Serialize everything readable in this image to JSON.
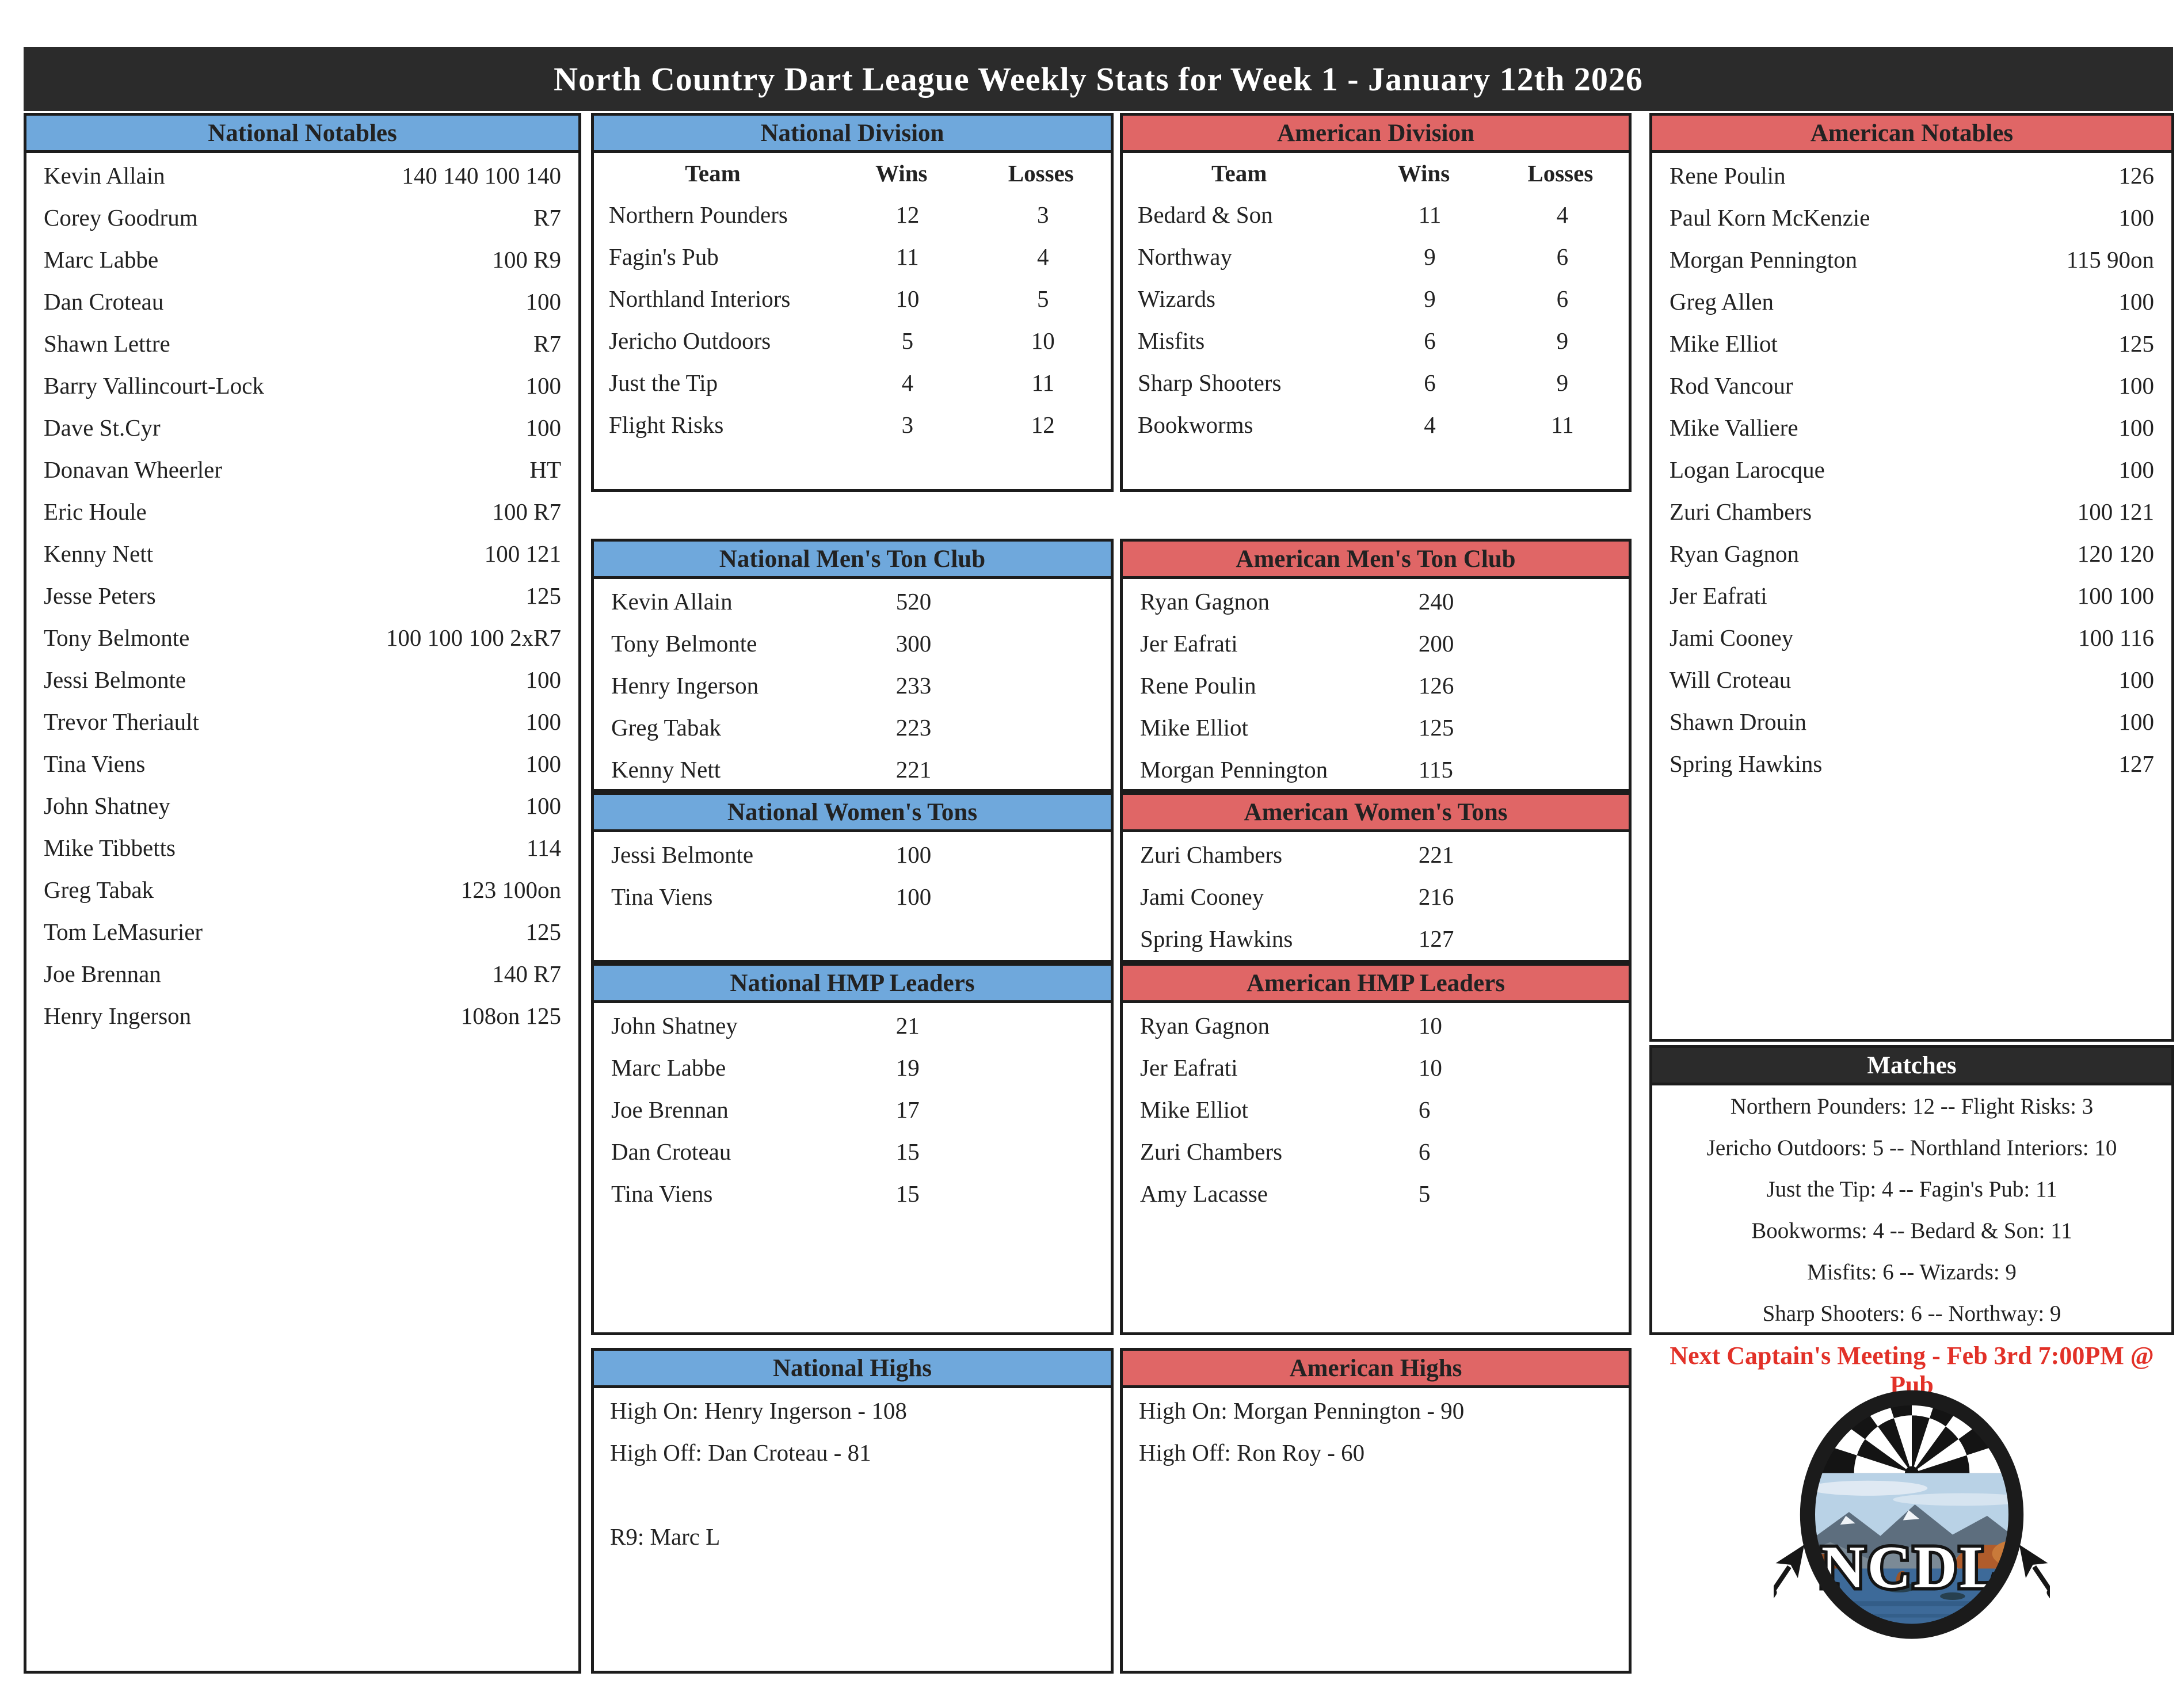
{
  "title": "North Country Dart League Weekly Stats for Week 1 - January 12th 2026",
  "colors": {
    "blue_header": "#6fa8dc",
    "red_header": "#e06666",
    "dark_bar": "#2b2b2b",
    "meeting_red": "#e23128"
  },
  "national_notables": {
    "title": "National Notables",
    "rows": [
      {
        "name": "Kevin Allain",
        "value": "140 140 100 140"
      },
      {
        "name": "Corey Goodrum",
        "value": "R7"
      },
      {
        "name": "Marc Labbe",
        "value": "100 R9"
      },
      {
        "name": "Dan Croteau",
        "value": "100"
      },
      {
        "name": "Shawn Lettre",
        "value": "R7"
      },
      {
        "name": "Barry Vallincourt-Lock",
        "value": "100"
      },
      {
        "name": "Dave St.Cyr",
        "value": "100"
      },
      {
        "name": "Donavan Wheerler",
        "value": "HT"
      },
      {
        "name": "Eric Houle",
        "value": "100 R7"
      },
      {
        "name": "Kenny Nett",
        "value": "100 121"
      },
      {
        "name": "Jesse Peters",
        "value": "125"
      },
      {
        "name": "Tony Belmonte",
        "value": "100 100 100 2xR7"
      },
      {
        "name": "Jessi Belmonte",
        "value": "100"
      },
      {
        "name": "Trevor Theriault",
        "value": "100"
      },
      {
        "name": "Tina Viens",
        "value": "100"
      },
      {
        "name": "John Shatney",
        "value": "100"
      },
      {
        "name": "Mike Tibbetts",
        "value": "114"
      },
      {
        "name": "Greg Tabak",
        "value": "123 100on"
      },
      {
        "name": "Tom LeMasurier",
        "value": "125"
      },
      {
        "name": "Joe Brennan",
        "value": "140 R7"
      },
      {
        "name": "Henry Ingerson",
        "value": "108on 125"
      }
    ]
  },
  "national_division": {
    "title": "National Division",
    "columns": {
      "team": "Team",
      "wins": "Wins",
      "losses": "Losses"
    },
    "rows": [
      {
        "team": "Northern Pounders",
        "wins": "12",
        "losses": "3"
      },
      {
        "team": "Fagin's Pub",
        "wins": "11",
        "losses": "4"
      },
      {
        "team": "Northland Interiors",
        "wins": "10",
        "losses": "5"
      },
      {
        "team": "Jericho Outdoors",
        "wins": "5",
        "losses": "10"
      },
      {
        "team": "Just the Tip",
        "wins": "4",
        "losses": "11"
      },
      {
        "team": "Flight Risks",
        "wins": "3",
        "losses": "12"
      }
    ]
  },
  "american_division": {
    "title": "American Division",
    "columns": {
      "team": "Team",
      "wins": "Wins",
      "losses": "Losses"
    },
    "rows": [
      {
        "team": "Bedard & Son",
        "wins": "11",
        "losses": "4"
      },
      {
        "team": "Northway",
        "wins": "9",
        "losses": "6"
      },
      {
        "team": "Wizards",
        "wins": "9",
        "losses": "6"
      },
      {
        "team": "Misfits",
        "wins": "6",
        "losses": "9"
      },
      {
        "team": "Sharp Shooters",
        "wins": "6",
        "losses": "9"
      },
      {
        "team": "Bookworms",
        "wins": "4",
        "losses": "11"
      }
    ]
  },
  "national_mens_ton_club": {
    "title": "National Men's Ton Club",
    "rows": [
      {
        "name": "Kevin Allain",
        "value": "520"
      },
      {
        "name": "Tony Belmonte",
        "value": "300"
      },
      {
        "name": "Henry Ingerson",
        "value": "233"
      },
      {
        "name": "Greg Tabak",
        "value": "223"
      },
      {
        "name": "Kenny Nett",
        "value": "221"
      }
    ]
  },
  "american_mens_ton_club": {
    "title": "American Men's Ton Club",
    "rows": [
      {
        "name": "Ryan Gagnon",
        "value": "240"
      },
      {
        "name": "Jer Eafrati",
        "value": "200"
      },
      {
        "name": "Rene Poulin",
        "value": "126"
      },
      {
        "name": "Mike Elliot",
        "value": "125"
      },
      {
        "name": "Morgan Pennington",
        "value": "115"
      }
    ]
  },
  "national_womens_tons": {
    "title": "National Women's Tons",
    "rows": [
      {
        "name": "Jessi Belmonte",
        "value": "100"
      },
      {
        "name": "Tina Viens",
        "value": "100"
      }
    ]
  },
  "american_womens_tons": {
    "title": "American Women's Tons",
    "rows": [
      {
        "name": "Zuri Chambers",
        "value": "221"
      },
      {
        "name": "Jami Cooney",
        "value": "216"
      },
      {
        "name": "Spring Hawkins",
        "value": "127"
      }
    ]
  },
  "national_hmp_leaders": {
    "title": "National HMP Leaders",
    "rows": [
      {
        "name": "John Shatney",
        "value": "21"
      },
      {
        "name": "Marc Labbe",
        "value": "19"
      },
      {
        "name": "Joe Brennan",
        "value": "17"
      },
      {
        "name": "Dan Croteau",
        "value": "15"
      },
      {
        "name": "Tina Viens",
        "value": "15"
      }
    ]
  },
  "american_hmp_leaders": {
    "title": "American HMP Leaders",
    "rows": [
      {
        "name": "Ryan Gagnon",
        "value": "10"
      },
      {
        "name": "Jer Eafrati",
        "value": "10"
      },
      {
        "name": "Mike Elliot",
        "value": "6"
      },
      {
        "name": "Zuri Chambers",
        "value": "6"
      },
      {
        "name": "Amy Lacasse",
        "value": "5"
      }
    ]
  },
  "national_highs": {
    "title": "National Highs",
    "high_on": "High On: Henry Ingerson - 108",
    "high_off": "High Off: Dan Croteau - 81",
    "note": "R9: Marc L"
  },
  "american_highs": {
    "title": "American Highs",
    "high_on": "High On: Morgan Pennington - 90",
    "high_off": "High Off: Ron Roy - 60"
  },
  "american_notables": {
    "title": "American Notables",
    "rows": [
      {
        "name": "Rene Poulin",
        "value": "126"
      },
      {
        "name": "Paul Korn McKenzie",
        "value": "100"
      },
      {
        "name": "Morgan Pennington",
        "value": "115 90on"
      },
      {
        "name": "Greg Allen",
        "value": "100"
      },
      {
        "name": "Mike Elliot",
        "value": "125"
      },
      {
        "name": "Rod Vancour",
        "value": "100"
      },
      {
        "name": "Mike Valliere",
        "value": "100"
      },
      {
        "name": "Logan Larocque",
        "value": "100"
      },
      {
        "name": "Zuri Chambers",
        "value": "100 121"
      },
      {
        "name": "Ryan Gagnon",
        "value": "120 120"
      },
      {
        "name": "Jer Eafrati",
        "value": "100 100"
      },
      {
        "name": "Jami Cooney",
        "value": "100 116"
      },
      {
        "name": "Will Croteau",
        "value": "100"
      },
      {
        "name": "Shawn Drouin",
        "value": "100"
      },
      {
        "name": "Spring Hawkins",
        "value": "127"
      }
    ]
  },
  "matches": {
    "title": "Matches",
    "rows": [
      "Northern Pounders: 12 -- Flight Risks: 3",
      "Jericho Outdoors: 5 -- Northland Interiors: 10",
      "Just the Tip: 4 -- Fagin's Pub: 11",
      "Bookworms: 4 -- Bedard & Son: 11",
      "Misfits: 6 -- Wizards: 9",
      "Sharp Shooters: 6 -- Northway: 9"
    ]
  },
  "meeting_note": "Next Captain's Meeting - Feb 3rd  7:00PM @ Pub",
  "logo": {
    "text": "NCDL"
  }
}
